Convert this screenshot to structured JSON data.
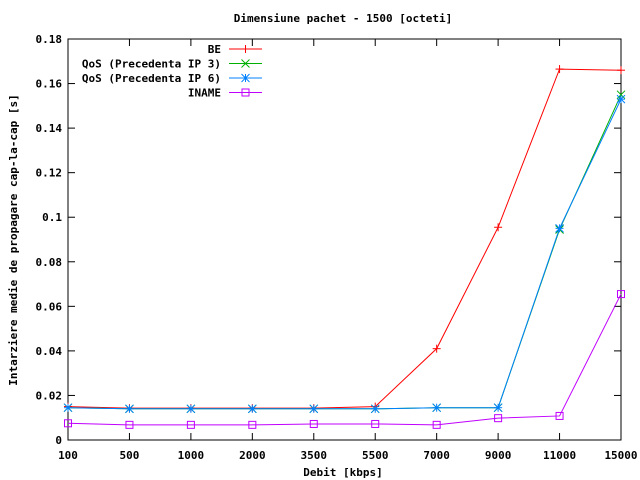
{
  "chart_data": {
    "type": "line",
    "title": "Dimensiune pachet - 1500 [octeti]",
    "xlabel": "Debit [kbps]",
    "ylabel": "Intarziere medie de propagare cap-la-cap [s]",
    "categories": [
      "100",
      "500",
      "1000",
      "2000",
      "3500",
      "5500",
      "7000",
      "9000",
      "11000",
      "15000"
    ],
    "ylim": [
      0,
      0.18
    ],
    "yticks": [
      "0",
      "0.02",
      "0.04",
      "0.06",
      "0.08",
      "0.1",
      "0.12",
      "0.14",
      "0.16",
      "0.18"
    ],
    "grid": false,
    "legend_position": "top-left",
    "series": [
      {
        "name": "BE",
        "color": "#ff0000",
        "marker": "plus",
        "values": [
          0.015,
          0.0143,
          0.0143,
          0.0143,
          0.0143,
          0.015,
          0.041,
          0.0955,
          0.1665,
          0.166
        ]
      },
      {
        "name": "QoS (Precedenta IP 3)",
        "color": "#00b000",
        "marker": "cross",
        "values": [
          0.0145,
          0.014,
          0.014,
          0.014,
          0.014,
          0.014,
          0.0145,
          0.0145,
          0.0945,
          0.155
        ]
      },
      {
        "name": "QoS (Precedenta IP 6)",
        "color": "#0080ff",
        "marker": "star",
        "values": [
          0.0145,
          0.014,
          0.014,
          0.014,
          0.014,
          0.014,
          0.0145,
          0.0145,
          0.095,
          0.153
        ]
      },
      {
        "name": "INAME",
        "color": "#c000ff",
        "marker": "square",
        "values": [
          0.0075,
          0.0068,
          0.0068,
          0.0068,
          0.0072,
          0.0072,
          0.0068,
          0.0098,
          0.0108,
          0.0655
        ]
      }
    ]
  }
}
